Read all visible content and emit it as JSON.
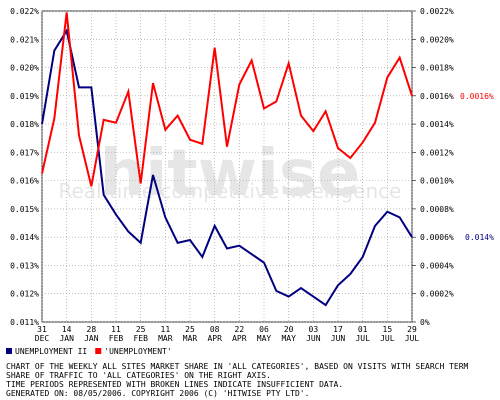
{
  "chart_data": {
    "type": "line",
    "watermark": "hitwise",
    "watermark_subtitle": "Real-time competitive intelligence",
    "categories": [
      "31 DEC",
      null,
      "14 JAN",
      null,
      "28 JAN",
      null,
      "11 FEB",
      null,
      "25 FEB",
      null,
      "11 MAR",
      null,
      "25 MAR",
      null,
      "08 APR",
      null,
      "22 APR",
      null,
      "06 MAY",
      null,
      "20 MAY",
      null,
      "03 JUN",
      null,
      "17 JUN",
      null,
      "01 JUL",
      null,
      "15 JUL",
      null,
      "29 JUL"
    ],
    "series": [
      {
        "name": "UNEMPLOYMENT II",
        "color": "#000080",
        "axis": "y",
        "end_label": "0.014%",
        "values": [
          0.018,
          0.0206,
          0.0213,
          0.0193,
          0.0193,
          0.0155,
          0.0148,
          0.0142,
          0.0138,
          0.0162,
          0.0147,
          0.0138,
          0.0139,
          0.0133,
          0.0144,
          0.0136,
          0.0137,
          0.0134,
          0.0131,
          0.0121,
          0.0119,
          0.0122,
          0.0119,
          0.0116,
          0.0123,
          0.0127,
          0.0133,
          0.0144,
          0.0149,
          0.0147,
          0.014
        ]
      },
      {
        "name": "'UNEMPLOYMENT'",
        "color": "#ff0000",
        "axis": "y2",
        "end_label": "0.0016%",
        "values": [
          0.00105,
          0.00144,
          0.00219,
          0.00132,
          0.00096,
          0.00143,
          0.00141,
          0.00163,
          0.00098,
          0.00169,
          0.00136,
          0.00146,
          0.00129,
          0.00126,
          0.00194,
          0.00124,
          0.00168,
          0.00185,
          0.00151,
          0.00156,
          0.00183,
          0.00146,
          0.00135,
          0.00149,
          0.00123,
          0.00116,
          0.00127,
          0.00141,
          0.00173,
          0.00187,
          0.0016
        ]
      }
    ],
    "ylim": [
      0.011,
      0.022
    ],
    "yticks": [
      {
        "value": 0.011,
        "label": "0.011%"
      },
      {
        "value": 0.012,
        "label": "0.012%"
      },
      {
        "value": 0.013,
        "label": "0.013%"
      },
      {
        "value": 0.014,
        "label": "0.014%"
      },
      {
        "value": 0.015,
        "label": "0.015%"
      },
      {
        "value": 0.016,
        "label": "0.016%"
      },
      {
        "value": 0.017,
        "label": "0.017%"
      },
      {
        "value": 0.018,
        "label": "0.018%"
      },
      {
        "value": 0.019,
        "label": "0.019%"
      },
      {
        "value": 0.02,
        "label": "0.020%"
      },
      {
        "value": 0.021,
        "label": "0.021%"
      },
      {
        "value": 0.022,
        "label": "0.022%"
      }
    ],
    "y2lim": [
      0,
      0.0022
    ],
    "y2ticks": [
      {
        "value": 0,
        "label": "0%"
      },
      {
        "value": 0.0002,
        "label": "0.0002%"
      },
      {
        "value": 0.0004,
        "label": "0.0004%"
      },
      {
        "value": 0.0006,
        "label": "0.0006%"
      },
      {
        "value": 0.0008,
        "label": "0.0008%"
      },
      {
        "value": 0.001,
        "label": "0.0010%"
      },
      {
        "value": 0.0012,
        "label": "0.0012%"
      },
      {
        "value": 0.0014,
        "label": "0.0014%"
      },
      {
        "value": 0.0016,
        "label": "0.0016%"
      },
      {
        "value": 0.0018,
        "label": "0.0018%"
      },
      {
        "value": 0.002,
        "label": "0.0020%"
      },
      {
        "value": 0.0022,
        "label": "0.0022%"
      }
    ],
    "grid": true,
    "notes": [
      "CHART OF THE WEEKLY ALL SITES MARKET SHARE IN 'ALL CATEGORIES', BASED ON VISITS WITH SEARCH TERM",
      "SHARE OF TRAFFIC TO 'ALL CATEGORIES' ON THE RIGHT AXIS.",
      "TIME PERIODS REPRESENTED WITH BROKEN LINES INDICATE INSUFFICIENT DATA.",
      "GENERATED ON: 08/05/2006. COPYRIGHT 2006 (C) 'HITWISE PTY LTD'."
    ]
  }
}
